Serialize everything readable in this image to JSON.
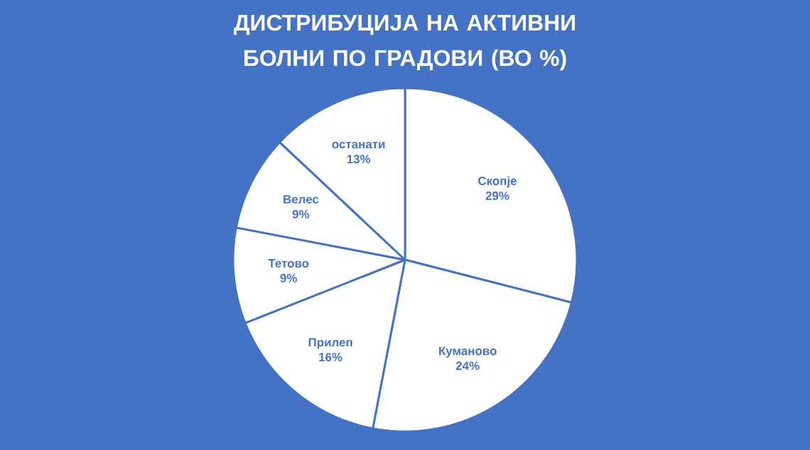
{
  "chart_data": {
    "type": "pie",
    "title": "ДИСТРИБУЦИЈА НА АКТИВНИ БОЛНИ ПО ГРАДОВИ (ВО %)",
    "categories": [
      "Скопје",
      "Куманово",
      "Прилеп",
      "Тетово",
      "Велес",
      "останати"
    ],
    "values": [
      29,
      24,
      16,
      9,
      9,
      13
    ],
    "value_labels": [
      "29%",
      "24%",
      "16%",
      "9%",
      "9%",
      "13%"
    ],
    "colors": [
      "#ffffff",
      "#ffffff",
      "#ffffff",
      "#ffffff",
      "#ffffff",
      "#ffffff"
    ]
  }
}
